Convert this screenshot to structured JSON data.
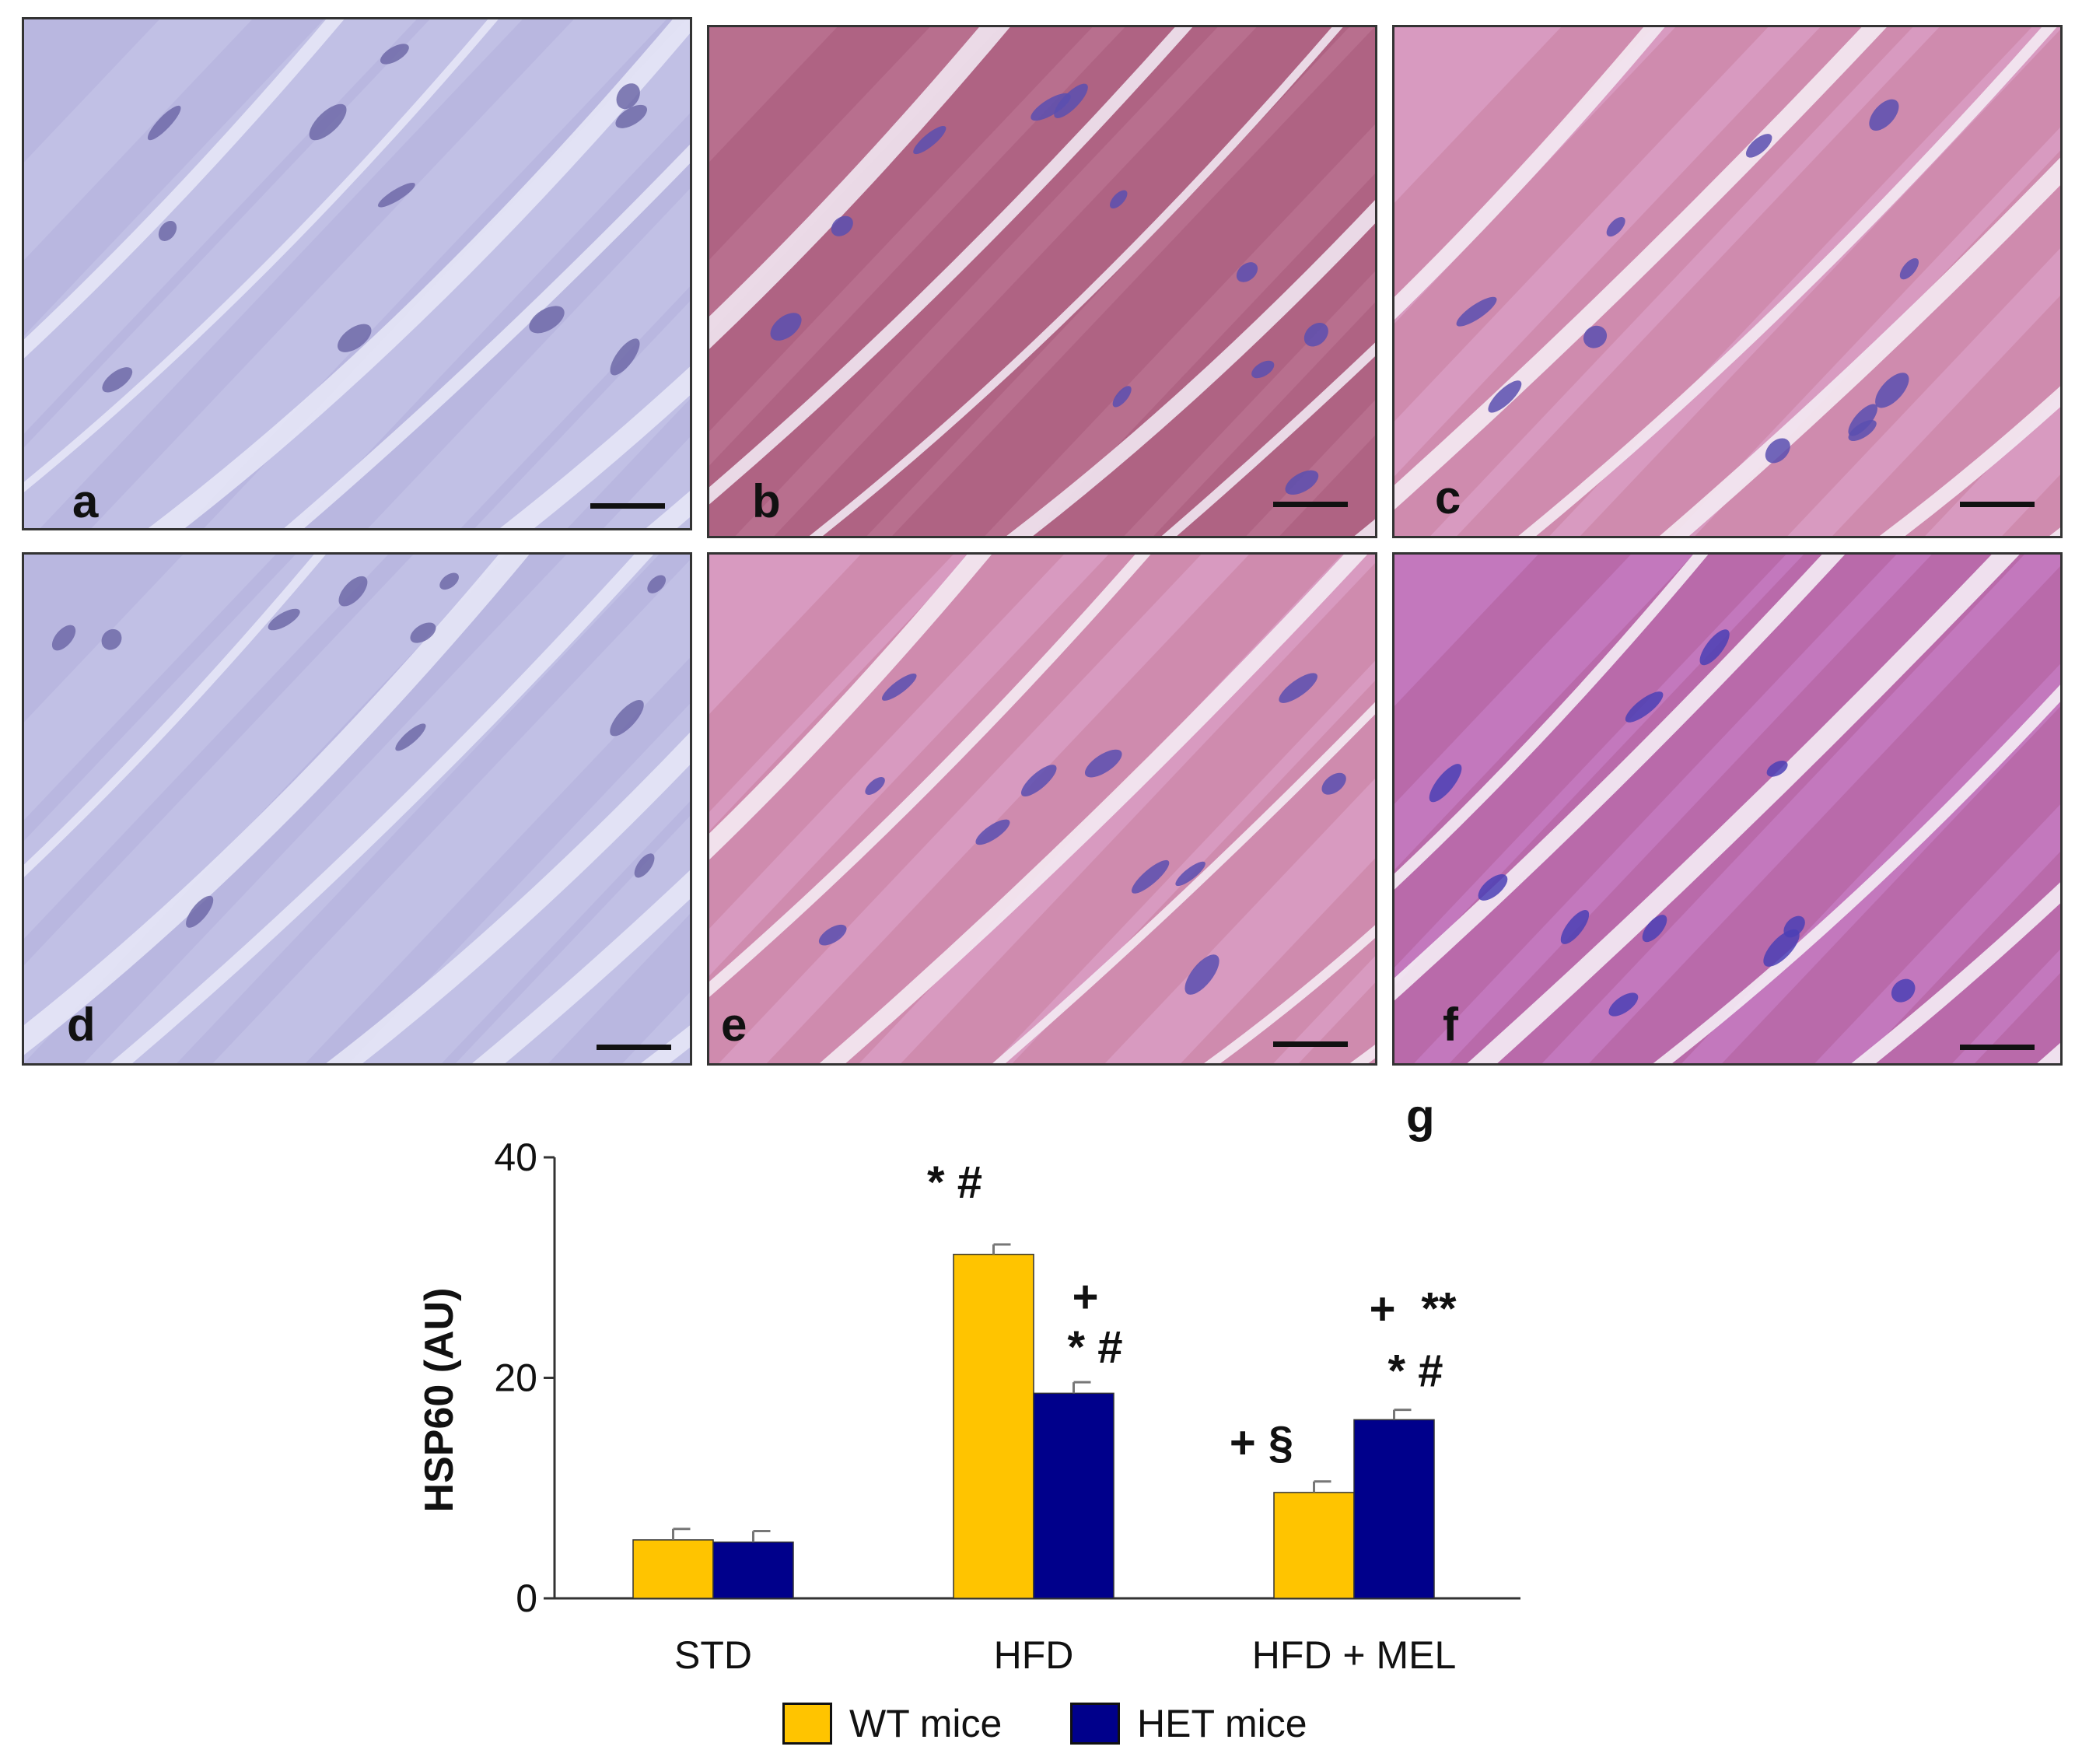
{
  "panels": [
    {
      "id": "a",
      "label": "a",
      "stain": "negative-control-blue"
    },
    {
      "id": "b",
      "label": "b",
      "stain": "positive-red-brown"
    },
    {
      "id": "c",
      "label": "c",
      "stain": "positive-pink"
    },
    {
      "id": "d",
      "label": "d",
      "stain": "negative-control-blue"
    },
    {
      "id": "e",
      "label": "e",
      "stain": "positive-pink"
    },
    {
      "id": "f",
      "label": "f",
      "stain": "positive-magenta"
    }
  ],
  "colors": {
    "wt": "#FFC400",
    "het": "#00008B",
    "bg_blue": "#b9b7e0",
    "bg_red": "#b86f8e",
    "bg_pink": "#d89ac0",
    "nucleus": "#5a4fb0"
  },
  "chart_label": "g",
  "chart_data": {
    "type": "bar",
    "categories": [
      "STD",
      "HFD",
      "HFD + MEL"
    ],
    "ylabel": "HSP60 (AU)",
    "ylim": [
      0,
      40
    ],
    "yticks": [
      "0",
      "20",
      "40"
    ],
    "series": [
      {
        "name": "WT mice",
        "values": [
          5.3,
          31.2,
          9.6
        ],
        "errors": [
          1.0,
          0.9,
          1.0
        ]
      },
      {
        "name": "HET mice",
        "values": [
          5.1,
          18.6,
          16.2
        ],
        "errors": [
          1.0,
          1.0,
          0.9
        ]
      }
    ],
    "annotations": [
      {
        "category": 1,
        "series": 0,
        "text": "* #"
      },
      {
        "category": 1,
        "series": 1,
        "text": "+"
      },
      {
        "category": 1,
        "series": 1,
        "text": "* #"
      },
      {
        "category": 2,
        "series": 0,
        "text": "+ §"
      },
      {
        "category": 2,
        "series": 1,
        "text": "+"
      },
      {
        "category": 2,
        "series": 1,
        "text": "**"
      },
      {
        "category": 2,
        "series": 1,
        "text": "* #"
      }
    ],
    "legend": "bottom"
  }
}
